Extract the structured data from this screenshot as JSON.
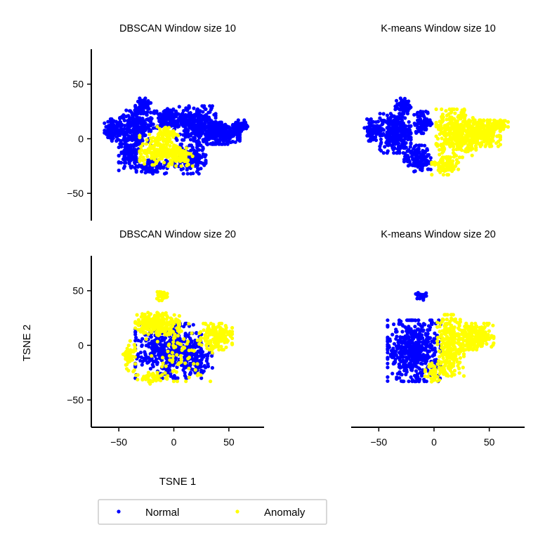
{
  "chart_data": [
    {
      "type": "scatter",
      "title": "DBSCAN Window size 10",
      "xlim": [
        -75,
        82
      ],
      "ylim": [
        -75,
        82
      ],
      "yticks": [
        -50,
        0,
        50
      ],
      "xticks": [],
      "xlabel": "",
      "ylabel": "",
      "show_x_axis": false,
      "show_y_axis": true,
      "series": [
        {
          "name": "Normal",
          "color": "#0000ff",
          "regions": [
            {
              "cx": -55,
              "cy": 8,
              "rx": 8,
              "ry": 10,
              "n": 90
            },
            {
              "cx": -35,
              "cy": 10,
              "rx": 14,
              "ry": 16,
              "n": 260
            },
            {
              "cx": -40,
              "cy": -15,
              "rx": 10,
              "ry": 14,
              "n": 120
            },
            {
              "cx": -28,
              "cy": 30,
              "rx": 7,
              "ry": 7,
              "n": 80
            },
            {
              "cx": -5,
              "cy": 18,
              "rx": 16,
              "ry": 10,
              "n": 160
            },
            {
              "cx": 20,
              "cy": 12,
              "rx": 18,
              "ry": 18,
              "n": 300
            },
            {
              "cx": 45,
              "cy": 5,
              "rx": 15,
              "ry": 10,
              "n": 200
            },
            {
              "cx": 60,
              "cy": 12,
              "rx": 7,
              "ry": 5,
              "n": 50
            },
            {
              "cx": 15,
              "cy": -20,
              "rx": 14,
              "ry": 12,
              "n": 140
            },
            {
              "cx": -20,
              "cy": -25,
              "rx": 14,
              "ry": 7,
              "n": 100
            }
          ]
        },
        {
          "name": "Anomaly",
          "color": "#ffff00",
          "regions": [
            {
              "cx": -15,
              "cy": -10,
              "rx": 16,
              "ry": 14,
              "n": 180
            },
            {
              "cx": 5,
              "cy": -15,
              "rx": 12,
              "ry": 10,
              "n": 110
            },
            {
              "cx": -5,
              "cy": 5,
              "rx": 10,
              "ry": 6,
              "n": 40
            }
          ]
        }
      ]
    },
    {
      "type": "scatter",
      "title": "K-means Window size 10",
      "xlim": [
        -75,
        82
      ],
      "ylim": [
        -75,
        82
      ],
      "xticks": [],
      "yticks": [],
      "xlabel": "",
      "ylabel": "",
      "show_x_axis": false,
      "show_y_axis": false,
      "series": [
        {
          "name": "Normal",
          "color": "#0000ff",
          "regions": [
            {
              "cx": -55,
              "cy": 8,
              "rx": 8,
              "ry": 10,
              "n": 90
            },
            {
              "cx": -35,
              "cy": 5,
              "rx": 14,
              "ry": 18,
              "n": 280
            },
            {
              "cx": -28,
              "cy": 30,
              "rx": 7,
              "ry": 7,
              "n": 80
            },
            {
              "cx": -15,
              "cy": -18,
              "rx": 12,
              "ry": 12,
              "n": 140
            },
            {
              "cx": -10,
              "cy": 15,
              "rx": 8,
              "ry": 10,
              "n": 90
            }
          ]
        },
        {
          "name": "Anomaly",
          "color": "#ffff00",
          "regions": [
            {
              "cx": 20,
              "cy": 5,
              "rx": 18,
              "ry": 22,
              "n": 360
            },
            {
              "cx": 45,
              "cy": 5,
              "rx": 15,
              "ry": 12,
              "n": 220
            },
            {
              "cx": 60,
              "cy": 12,
              "rx": 7,
              "ry": 5,
              "n": 50
            },
            {
              "cx": 10,
              "cy": -25,
              "rx": 12,
              "ry": 8,
              "n": 80
            }
          ]
        }
      ]
    },
    {
      "type": "scatter",
      "title": "DBSCAN Window size 20",
      "xlim": [
        -75,
        82
      ],
      "ylim": [
        -75,
        82
      ],
      "xticks": [
        -50,
        0,
        50
      ],
      "yticks": [
        -50,
        0,
        50
      ],
      "xlabel": "TSNE 1",
      "ylabel": "TSNE 2",
      "show_x_axis": true,
      "show_y_axis": true,
      "series": [
        {
          "name": "Normal",
          "color": "#0000ff",
          "regions": [
            {
              "cx": -5,
              "cy": -5,
              "rx": 30,
              "ry": 25,
              "n": 420
            },
            {
              "cx": 20,
              "cy": -10,
              "rx": 15,
              "ry": 15,
              "n": 120
            }
          ]
        },
        {
          "name": "Anomaly",
          "color": "#ffff00",
          "regions": [
            {
              "cx": -15,
              "cy": 20,
              "rx": 20,
              "ry": 10,
              "n": 220
            },
            {
              "cx": 38,
              "cy": 8,
              "rx": 15,
              "ry": 12,
              "n": 170
            },
            {
              "cx": -12,
              "cy": 45,
              "rx": 6,
              "ry": 4,
              "n": 30
            },
            {
              "cx": -40,
              "cy": -10,
              "rx": 6,
              "ry": 14,
              "n": 50
            },
            {
              "cx": 5,
              "cy": -5,
              "rx": 30,
              "ry": 28,
              "n": 90
            },
            {
              "cx": -20,
              "cy": -30,
              "rx": 15,
              "ry": 6,
              "n": 40
            }
          ]
        }
      ]
    },
    {
      "type": "scatter",
      "title": "K-means Window size 20",
      "xlim": [
        -75,
        82
      ],
      "ylim": [
        -75,
        82
      ],
      "xticks": [
        -50,
        0,
        50
      ],
      "yticks": [],
      "xlabel": "",
      "ylabel": "",
      "show_x_axis": true,
      "show_y_axis": false,
      "series": [
        {
          "name": "Normal",
          "color": "#0000ff",
          "regions": [
            {
              "cx": -18,
              "cy": -5,
              "rx": 24,
              "ry": 28,
              "n": 520
            },
            {
              "cx": -12,
              "cy": 45,
              "rx": 5,
              "ry": 4,
              "n": 25
            }
          ]
        },
        {
          "name": "Anomaly",
          "color": "#ffff00",
          "regions": [
            {
              "cx": 15,
              "cy": 0,
              "rx": 12,
              "ry": 28,
              "n": 260
            },
            {
              "cx": 38,
              "cy": 8,
              "rx": 16,
              "ry": 12,
              "n": 200
            },
            {
              "cx": 0,
              "cy": -25,
              "rx": 8,
              "ry": 10,
              "n": 40
            }
          ]
        }
      ]
    }
  ],
  "legend": {
    "items": [
      {
        "label": "Normal",
        "color": "#0000ff"
      },
      {
        "label": "Anomaly",
        "color": "#ffff00"
      }
    ]
  }
}
